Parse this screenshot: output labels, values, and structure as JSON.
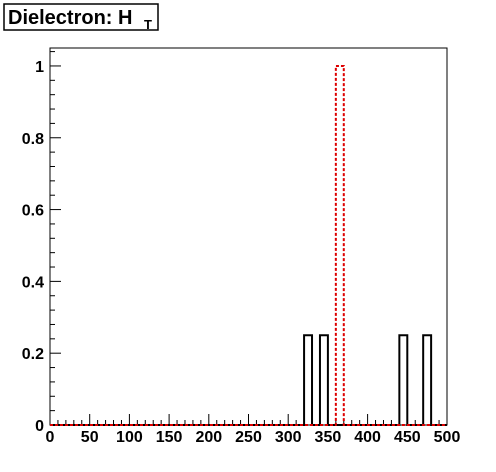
{
  "chart_data": {
    "type": "bar",
    "title": "Dielectron: H",
    "title_subscript": "T",
    "xlabel": "",
    "ylabel": "",
    "xlim": [
      0,
      500
    ],
    "ylim": [
      0,
      1.05
    ],
    "x_ticks": [
      "0",
      "50",
      "100",
      "150",
      "200",
      "250",
      "300",
      "350",
      "400",
      "450",
      "500"
    ],
    "y_ticks": [
      "0",
      "0.2",
      "0.4",
      "0.6",
      "0.8",
      "1"
    ],
    "bin_width": 10,
    "grid": false,
    "legend": "none",
    "series": [
      {
        "style": "solid",
        "color": "#000000",
        "bins": [
          {
            "x0": 320,
            "x1": 330,
            "y": 0.25
          },
          {
            "x0": 340,
            "x1": 350,
            "y": 0.25
          },
          {
            "x0": 440,
            "x1": 450,
            "y": 0.25
          },
          {
            "x0": 470,
            "x1": 480,
            "y": 0.25
          }
        ]
      },
      {
        "style": "dashed",
        "color": "#dd0000",
        "bins": [
          {
            "x0": 360,
            "x1": 370,
            "y": 1.0
          }
        ]
      }
    ]
  }
}
